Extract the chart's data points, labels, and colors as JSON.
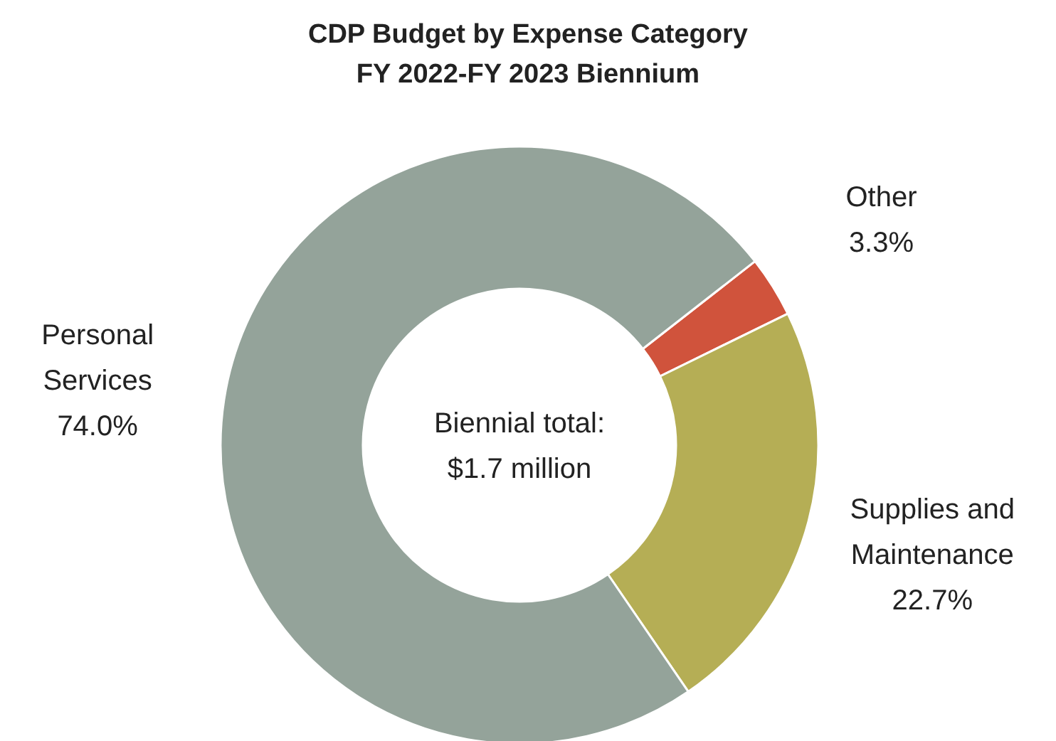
{
  "chart_data": {
    "type": "donut",
    "title": "CDP Budget by Expense Category",
    "subtitle": "FY 2022-FY 2023 Biennium",
    "categories": [
      "Other",
      "Supplies and Maintenance",
      "Personal Services"
    ],
    "values": [
      3.3,
      22.7,
      74.0
    ],
    "colors": [
      "#d0533c",
      "#b5ae55",
      "#94a39a"
    ],
    "value_labels": [
      "3.3%",
      "22.7%",
      "74.0%"
    ],
    "annotations": [
      "Biennial total: $1.7 million"
    ]
  }
}
